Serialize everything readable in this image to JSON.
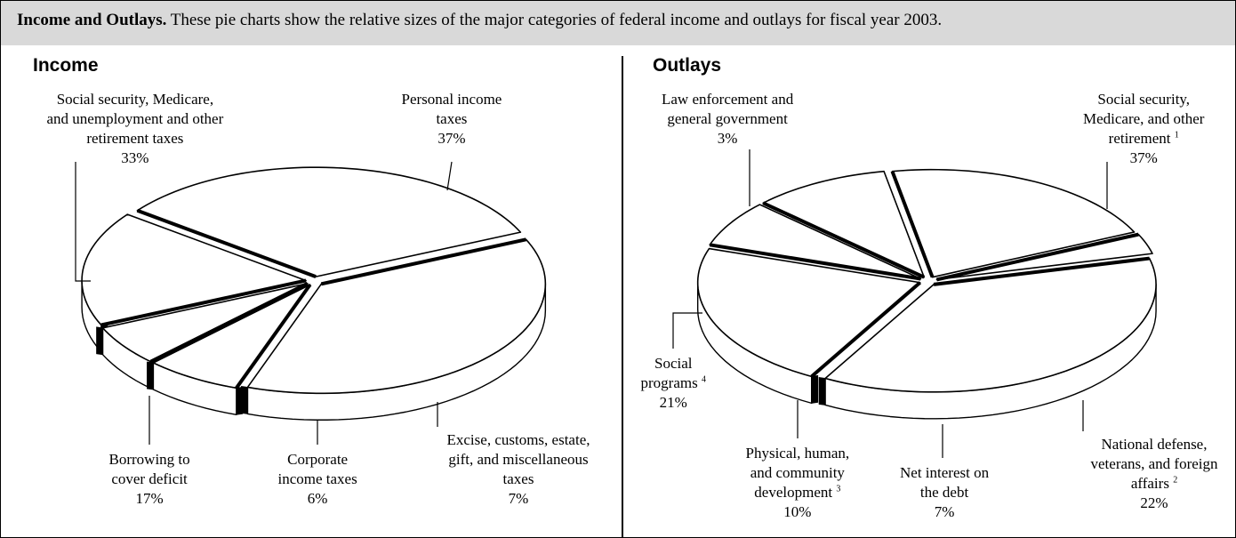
{
  "caption": {
    "bold": "Income and Outlays.",
    "text": " These pie charts show the relative sizes of the major categories of federal income and outlays for fiscal year 2003."
  },
  "colors": {
    "header_bg": "#d9d9d9",
    "slice_fill": "#ffffff",
    "stroke": "#000000"
  },
  "chart_data": [
    {
      "type": "pie",
      "title": "Income",
      "three_d": true,
      "exploded": true,
      "unit": "%",
      "slices": [
        {
          "label_lines": [
            "Personal income",
            "taxes"
          ],
          "value": 37,
          "value_label": "37%"
        },
        {
          "label_lines": [
            "Excise, customs, estate,",
            "gift, and miscellaneous",
            "taxes"
          ],
          "value": 7,
          "value_label": "7%"
        },
        {
          "label_lines": [
            "Corporate",
            "income taxes"
          ],
          "value": 6,
          "value_label": "6%"
        },
        {
          "label_lines": [
            "Borrowing to",
            "cover deficit"
          ],
          "value": 17,
          "value_label": "17%"
        },
        {
          "label_lines": [
            "Social security, Medicare,",
            "and unemployment and other",
            "retirement taxes"
          ],
          "value": 33,
          "value_label": "33%"
        }
      ]
    },
    {
      "type": "pie",
      "title": "Outlays",
      "three_d": true,
      "exploded": true,
      "unit": "%",
      "slices": [
        {
          "label_lines": [
            "Social security,",
            "Medicare, and other",
            "retirement"
          ],
          "footnote": "1",
          "value": 37,
          "value_label": "37%"
        },
        {
          "label_lines": [
            "National defense,",
            "veterans, and foreign",
            "affairs"
          ],
          "footnote": "2",
          "value": 22,
          "value_label": "22%"
        },
        {
          "label_lines": [
            "Net interest on",
            "the debt"
          ],
          "value": 7,
          "value_label": "7%"
        },
        {
          "label_lines": [
            "Physical, human,",
            "and community",
            "development"
          ],
          "footnote": "3",
          "value": 10,
          "value_label": "10%"
        },
        {
          "label_lines": [
            "Social",
            "programs"
          ],
          "footnote": "4",
          "value": 21,
          "value_label": "21%"
        },
        {
          "label_lines": [
            "Law enforcement and",
            "general government"
          ],
          "value": 3,
          "value_label": "3%"
        }
      ]
    }
  ]
}
